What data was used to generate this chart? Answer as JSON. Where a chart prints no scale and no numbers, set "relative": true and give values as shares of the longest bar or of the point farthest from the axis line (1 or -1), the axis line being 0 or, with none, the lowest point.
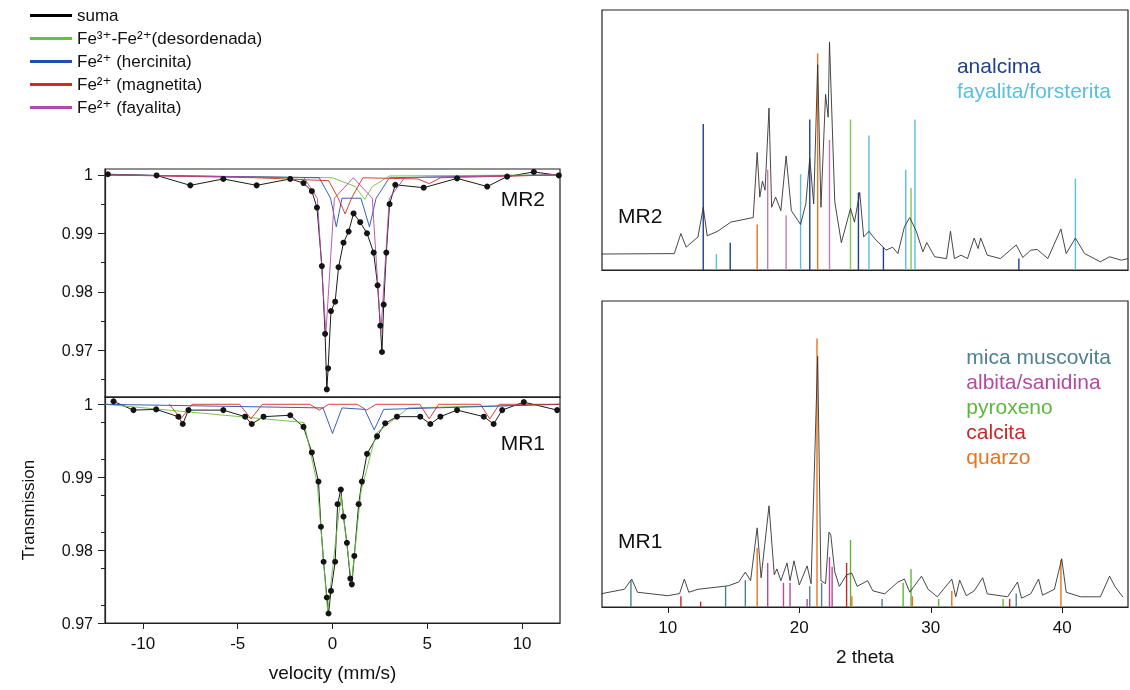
{
  "chart_data": [
    {
      "type": "line",
      "xlim": [
        -12,
        12
      ],
      "xticks": [
        -10,
        -5,
        0,
        5,
        10
      ],
      "ylim": [
        0.962,
        1.001
      ],
      "yticks": [
        0.97,
        0.98,
        0.99,
        1
      ],
      "tick_labels": "y",
      "legend": "top",
      "annotations": [
        "MR2"
      ],
      "series": [
        {
          "type": "scatter",
          "color": "#141414",
          "marker": "circle",
          "x": [
            -11.85,
            -9.28,
            -7.5,
            -5.76,
            -4.0,
            -2.23,
            -1.53,
            -1.09,
            -0.82,
            -0.56,
            -0.39,
            -0.3,
            -0.23,
            -0.08,
            0.14,
            0.32,
            0.58,
            0.85,
            1.11,
            1.46,
            1.82,
            2.17,
            2.38,
            2.52,
            2.61,
            2.7,
            2.84,
            3.01,
            3.31,
            4.81,
            6.57,
            8.16,
            9.21,
            10.62,
            11.94
          ],
          "values": [
            1.0001,
            0.9999,
            0.9982,
            0.9993,
            0.9982,
            0.9993,
            0.9986,
            0.9972,
            0.9944,
            0.9844,
            0.9728,
            0.9633,
            0.9669,
            0.9767,
            0.9783,
            0.9842,
            0.9884,
            0.9903,
            0.9934,
            0.9919,
            0.99,
            0.9867,
            0.9811,
            0.9742,
            0.9697,
            0.9778,
            0.9867,
            0.995,
            0.9983,
            0.9978,
            0.9994,
            0.998,
            0.9997,
            1.0005,
            0.9999
          ]
        },
        {
          "name": "suma",
          "color": "#000000",
          "x": [
            -11.85,
            -9.28,
            -7.5,
            -5.76,
            -4.0,
            -2.23,
            -1.53,
            -1.09,
            -0.82,
            -0.56,
            -0.39,
            -0.3,
            -0.23,
            -0.08,
            0.14,
            0.32,
            0.58,
            0.85,
            1.11,
            1.46,
            1.82,
            2.17,
            2.38,
            2.52,
            2.61,
            2.7,
            2.84,
            3.01,
            3.31,
            4.81,
            6.57,
            8.16,
            9.21,
            10.62,
            11.94
          ],
          "values": [
            1.0001,
            0.9999,
            0.9982,
            0.9993,
            0.9982,
            0.9993,
            0.9986,
            0.9972,
            0.9944,
            0.9844,
            0.9728,
            0.9633,
            0.9669,
            0.9767,
            0.9783,
            0.9842,
            0.9884,
            0.9903,
            0.9934,
            0.9919,
            0.99,
            0.9867,
            0.9811,
            0.9742,
            0.9697,
            0.9778,
            0.9867,
            0.995,
            0.9983,
            0.9978,
            0.9994,
            0.998,
            0.9997,
            1.0005,
            0.9999
          ]
        },
        {
          "name": "Fe³⁺-Fe²⁺(desordenada)",
          "color": "#66c23a",
          "x": [
            -12,
            0,
            1.2,
            1.7,
            2.1,
            3,
            12
          ],
          "values": [
            1,
            0.9995,
            0.998,
            0.9958,
            0.998,
            0.9998,
            1
          ]
        },
        {
          "name": "Fe²⁺ (hercinita)",
          "color": "#1f4fb0",
          "x": [
            -12,
            -0.7,
            -0.1,
            0.2,
            0.5,
            1.5,
            1.95,
            2.3,
            3,
            12
          ],
          "values": [
            1,
            0.9995,
            0.996,
            0.9911,
            0.996,
            0.996,
            0.9911,
            0.996,
            0.9995,
            1
          ]
        },
        {
          "name": "Fe²⁺ (magnetita)",
          "color": "#d42a1f",
          "x": [
            -12,
            -4,
            -0.2,
            0.3,
            0.67,
            1.0,
            1.6,
            4.5,
            5.1,
            5.7,
            12
          ],
          "values": [
            1,
            0.9995,
            0.999,
            0.996,
            0.9933,
            0.996,
            0.9995,
            0.9993,
            0.9985,
            0.9995,
            1
          ]
        },
        {
          "name": "Fe²⁺ (fayalita)",
          "color": "#b04aa8",
          "x": [
            -12,
            -1.5,
            -0.8,
            -0.35,
            0.1,
            1.1,
            2.1,
            2.55,
            3.0,
            3.8,
            12
          ],
          "values": [
            1,
            0.9995,
            0.996,
            0.9728,
            0.996,
            0.9995,
            0.996,
            0.973,
            0.996,
            0.9995,
            1
          ]
        }
      ]
    },
    {
      "type": "line",
      "xlabel": "velocity (mm/s)",
      "ylabel": "Transmission",
      "xlim": [
        -12,
        12
      ],
      "xticks": [
        -10,
        -5,
        0,
        5,
        10
      ],
      "ylim": [
        0.97,
        1.001
      ],
      "yticks": [
        0.97,
        0.98,
        0.99,
        1
      ],
      "annotations": [
        "MR1"
      ],
      "series": [
        {
          "type": "scatter",
          "color": "#141414",
          "marker": "circle",
          "x": [
            -11.55,
            -10.5,
            -9.3,
            -8.13,
            -7.9,
            -7.6,
            -5.76,
            -4.61,
            -4.26,
            -3.64,
            -2.23,
            -1.53,
            -1.09,
            -0.74,
            -0.61,
            -0.47,
            -0.3,
            -0.21,
            -0.08,
            0.14,
            0.27,
            0.44,
            0.58,
            0.76,
            0.94,
            1.02,
            1.15,
            1.38,
            1.55,
            1.82,
            2.35,
            2.78,
            3.4,
            4.63,
            5.16,
            5.69,
            6.57,
            7.98,
            8.5,
            8.95,
            10.09,
            11.85
          ],
          "values": [
            1.0004,
            0.9992,
            0.9993,
            0.9983,
            0.9973,
            0.9992,
            0.9992,
            0.9983,
            0.9973,
            0.9983,
            0.9985,
            0.9969,
            0.9934,
            0.9894,
            0.9832,
            0.9784,
            0.9735,
            0.9713,
            0.9744,
            0.9784,
            0.9863,
            0.9883,
            0.9846,
            0.981,
            0.9761,
            0.9753,
            0.9792,
            0.9863,
            0.9894,
            0.9932,
            0.9956,
            0.9974,
            0.9983,
            0.9983,
            0.9973,
            0.9983,
            0.9992,
            0.9983,
            0.9973,
            0.9992,
            1.0003,
            0.9992
          ]
        },
        {
          "color": "#000000",
          "x": [
            -11.55,
            -10.5,
            -9.3,
            -8.13,
            -7.9,
            -7.6,
            -5.76,
            -4.61,
            -4.26,
            -3.64,
            -2.23,
            -1.53,
            -1.09,
            -0.74,
            -0.61,
            -0.47,
            -0.3,
            -0.21,
            -0.08,
            0.14,
            0.27,
            0.44,
            0.58,
            0.76,
            0.94,
            1.02,
            1.15,
            1.38,
            1.55,
            1.82,
            2.35,
            2.78,
            3.4,
            4.63,
            5.16,
            5.69,
            6.57,
            7.98,
            8.5,
            8.95,
            10.09,
            11.85
          ],
          "values": [
            1.0004,
            0.9992,
            0.9993,
            0.9983,
            0.9973,
            0.9992,
            0.9992,
            0.9983,
            0.9973,
            0.9983,
            0.9985,
            0.9969,
            0.9934,
            0.9894,
            0.9832,
            0.9784,
            0.9735,
            0.9713,
            0.9744,
            0.9784,
            0.9863,
            0.9883,
            0.9846,
            0.981,
            0.9761,
            0.9753,
            0.9792,
            0.9863,
            0.9894,
            0.9932,
            0.9956,
            0.9974,
            0.9983,
            0.9983,
            0.9973,
            0.9983,
            0.9992,
            0.9983,
            0.9973,
            0.9992,
            1.0003,
            0.9992
          ]
        },
        {
          "color": "#66c23a",
          "x": [
            -12,
            -1.5,
            -0.8,
            -0.25,
            0.2,
            0.45,
            0.7,
            1.0,
            1.5,
            2.3,
            4,
            12
          ],
          "values": [
            1,
            0.9975,
            0.989,
            0.9715,
            0.982,
            0.9875,
            0.982,
            0.9755,
            0.988,
            0.996,
            0.9995,
            1
          ]
        },
        {
          "color": "#1f4fb0",
          "x": [
            -12,
            -0.5,
            0,
            0.5,
            1.7,
            2.2,
            2.7,
            12
          ],
          "values": [
            1,
            0.9995,
            0.996,
            0.9995,
            0.9993,
            0.9965,
            0.9993,
            1
          ]
        },
        {
          "color": "#d42a1f",
          "x": [
            -8.6,
            -8.0,
            -7.4,
            -4.9,
            -4.3,
            -3.7,
            -1.2,
            -0.7,
            -0.2,
            1.3,
            1.8,
            2.3,
            4.6,
            5.1,
            5.6,
            7.8,
            8.3,
            8.8,
            12
          ],
          "values": [
            1,
            0.998,
            1,
            1,
            0.998,
            1,
            1,
            0.9992,
            1,
            1,
            0.9992,
            1,
            1,
            0.998,
            1,
            1,
            0.998,
            1,
            1
          ]
        }
      ]
    },
    {
      "type": "line",
      "relative": true,
      "xlim": [
        5,
        45
      ],
      "tick_labels": false,
      "legend": "top right",
      "annotations": [
        "MR2"
      ],
      "series": [
        {
          "color": "#333333",
          "x": [
            5.0,
            10.5,
            11.0,
            11.4,
            12.3,
            12.7,
            13.0,
            13.8,
            14.8,
            16.5,
            16.8,
            17.0,
            17.2,
            17.4,
            17.7,
            17.9,
            18.2,
            18.6,
            19.0,
            19.4,
            20.1,
            20.5,
            20.8,
            21.1,
            21.4,
            21.65,
            22.0,
            22.2,
            22.3,
            22.7,
            23.2,
            23.9,
            24.2,
            24.6,
            24.9,
            25.3,
            25.7,
            26.6,
            27.1,
            27.5,
            28.0,
            28.4,
            28.9,
            29.4,
            29.7,
            30.3,
            31.2,
            31.5,
            31.8,
            32.3,
            32.8,
            33.3,
            33.6,
            33.8,
            34.3,
            35.3,
            36.5,
            37.0,
            37.6,
            38.1,
            38.9,
            39.9,
            40.3,
            41.0,
            41.7,
            42.9,
            43.6,
            44.5,
            45
          ],
          "values": [
            0.07,
            0.072,
            0.16,
            0.1,
            0.145,
            0.275,
            0.15,
            0.17,
            0.21,
            0.23,
            0.515,
            0.32,
            0.39,
            0.35,
            0.71,
            0.275,
            0.32,
            0.26,
            0.5,
            0.26,
            0.2,
            0.29,
            0.49,
            0.29,
            0.9,
            0.275,
            0.77,
            0.67,
            1.0,
            0.3,
            0.12,
            0.27,
            0.21,
            0.34,
            0.145,
            0.17,
            0.14,
            0.087,
            0.1,
            0.072,
            0.19,
            0.23,
            0.17,
            0.08,
            0.12,
            0.058,
            0.05,
            0.17,
            0.05,
            0.065,
            0.05,
            0.14,
            0.094,
            0.14,
            0.065,
            0.05,
            0.11,
            0.055,
            0.087,
            0.09,
            0.05,
            0.18,
            0.072,
            0.14,
            0.072,
            0.036,
            0.058,
            0.043,
            0.05
          ]
        },
        {
          "name": "analcima",
          "type": "bar",
          "color": "#1f3f95",
          "x": [
            12.7,
            14.75,
            20.8,
            24.5,
            26.4,
            36.7
          ],
          "values": [
            0.64,
            0.12,
            0.66,
            0.34,
            0.1,
            0.05
          ]
        },
        {
          "name": "fayalita/forsterita",
          "type": "bar",
          "color": "#5bbde0",
          "x": [
            13.7,
            20.1,
            25.3,
            28.1,
            28.8,
            41.0
          ],
          "values": [
            0.07,
            0.42,
            0.59,
            0.44,
            0.66,
            0.4
          ]
        },
        {
          "type": "bar",
          "color": "#c27bb8",
          "x": [
            17.6,
            19.0,
            22.3
          ],
          "values": [
            0.44,
            0.24,
            0.57
          ]
        },
        {
          "type": "bar",
          "color": "#e8731e",
          "x": [
            16.8,
            21.4
          ],
          "values": [
            0.2,
            0.95
          ]
        },
        {
          "type": "bar",
          "color": "#7cc855",
          "x": [
            23.9,
            28.5
          ],
          "values": [
            0.66,
            0.36
          ]
        }
      ]
    },
    {
      "type": "line",
      "relative": true,
      "xlabel": "2 theta",
      "xlim": [
        5,
        45
      ],
      "xticks": [
        10,
        20,
        30,
        40
      ],
      "legend": "top right",
      "annotations": [
        "MR1"
      ],
      "series": [
        {
          "color": "#333333",
          "x": [
            5.0,
            6.7,
            7.26,
            7.7,
            10.0,
            10.9,
            11.26,
            11.6,
            12.3,
            14.6,
            15.4,
            15.9,
            16.3,
            16.8,
            17.1,
            17.7,
            18.1,
            18.3,
            18.6,
            19.07,
            19.3,
            19.6,
            20.0,
            20.6,
            20.9,
            21.4,
            21.65,
            22.0,
            22.26,
            22.4,
            22.7,
            23.05,
            23.6,
            24.0,
            24.4,
            25.2,
            25.6,
            26.5,
            27.5,
            28.0,
            28.4,
            29.3,
            29.8,
            30.5,
            31.6,
            31.9,
            32.2,
            32.7,
            33.3,
            33.95,
            34.3,
            35.85,
            36.6,
            36.9,
            37.6,
            38.2,
            38.5,
            39.4,
            39.96,
            40.3,
            41.4,
            42.9,
            43.6,
            44.0,
            44.6
          ],
          "values": [
            0.05,
            0.066,
            0.104,
            0.055,
            0.042,
            0.05,
            0.104,
            0.055,
            0.066,
            0.079,
            0.093,
            0.13,
            0.098,
            0.295,
            0.109,
            0.377,
            0.12,
            0.142,
            0.098,
            0.164,
            0.098,
            0.172,
            0.082,
            0.153,
            0.087,
            0.934,
            0.098,
            0.087,
            0.279,
            0.268,
            0.131,
            0.077,
            0.12,
            0.126,
            0.077,
            0.098,
            0.06,
            0.049,
            0.093,
            0.104,
            0.055,
            0.115,
            0.066,
            0.038,
            0.104,
            0.038,
            0.1,
            0.042,
            0.06,
            0.109,
            0.049,
            0.038,
            0.093,
            0.033,
            0.049,
            0.104,
            0.044,
            0.066,
            0.18,
            0.055,
            0.038,
            0.038,
            0.115,
            0.077,
            0.038
          ]
        },
        {
          "name": "mica muscovita",
          "type": "bar",
          "color": "#4c8290",
          "x": [
            7.2,
            14.4,
            15.9,
            20.8,
            21.7,
            26.3,
            36.5
          ],
          "values": [
            0.1,
            0.077,
            0.1,
            0.077,
            0.09,
            0.03,
            0.05
          ]
        },
        {
          "name": "albita/sanidina",
          "type": "bar",
          "color": "#b24aa0",
          "x": [
            17.6,
            18.8,
            19.3,
            20.6,
            22.3,
            22.5
          ],
          "values": [
            0.164,
            0.09,
            0.09,
            0.03,
            0.186,
            0.15
          ]
        },
        {
          "name": "pyroxeno",
          "type": "bar",
          "color": "#5cb83a",
          "x": [
            23.9,
            27.9,
            28.5,
            30.6,
            35.5
          ],
          "values": [
            0.25,
            0.09,
            0.142,
            0.03,
            0.03
          ]
        },
        {
          "name": "calcita",
          "type": "bar",
          "color": "#c62828",
          "x": [
            11.0,
            12.5,
            23.6,
            36.0
          ],
          "values": [
            0.04,
            0.02,
            0.164,
            0.03
          ]
        },
        {
          "name": "quarzo",
          "type": "bar",
          "color": "#e8731e",
          "x": [
            16.8,
            21.35,
            24.0,
            28.6,
            31.6,
            39.9
          ],
          "values": [
            0.22,
            1.0,
            0.04,
            0.04,
            0.06,
            0.175
          ]
        }
      ]
    }
  ]
}
